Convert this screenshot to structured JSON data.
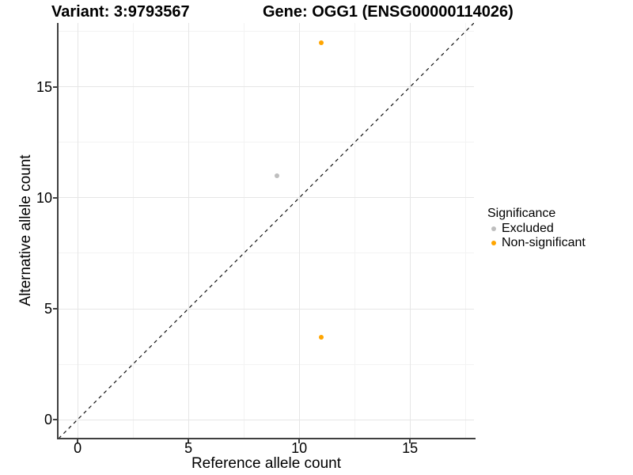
{
  "titles": {
    "variant": "Variant: 3:9793567",
    "gene": "Gene: OGG1 (ENSG00000114026)"
  },
  "chart_data": {
    "type": "scatter",
    "xlabel": "Reference allele count",
    "ylabel": "Alternative allele count",
    "xlim": [
      -0.86,
      17.89
    ],
    "ylim": [
      -0.82,
      17.89
    ],
    "xticks": [
      0,
      5,
      10,
      15
    ],
    "xtick_labels": [
      "0",
      "5",
      "10",
      "15"
    ],
    "yticks": [
      0,
      5,
      10,
      15
    ],
    "ytick_labels": [
      "0",
      "5",
      "10",
      "15"
    ],
    "xticks_minor": [
      2.5,
      7.5,
      12.5,
      17.5
    ],
    "yticks_minor": [
      2.5,
      7.5,
      12.5,
      17.5
    ],
    "grid": "major+minor",
    "identity_line": {
      "type": "y=x",
      "style": "dashed",
      "color": "#111111"
    },
    "points": [
      {
        "x": 9,
        "y": 11,
        "series": "Excluded"
      },
      {
        "x": 11,
        "y": 17,
        "series": "Non-significant"
      },
      {
        "x": 11,
        "y": 3.7,
        "series": "Non-significant"
      }
    ],
    "legend": {
      "title": "Significance",
      "position": "right",
      "entries": [
        {
          "label": "Excluded",
          "color": "#bebebe"
        },
        {
          "label": "Non-significant",
          "color": "#ffa500"
        }
      ]
    },
    "colors": {
      "grid_major": "#e6e6e6",
      "grid_minor": "#f3f3f3",
      "axis_line": "#404040",
      "text": "#000000"
    }
  }
}
